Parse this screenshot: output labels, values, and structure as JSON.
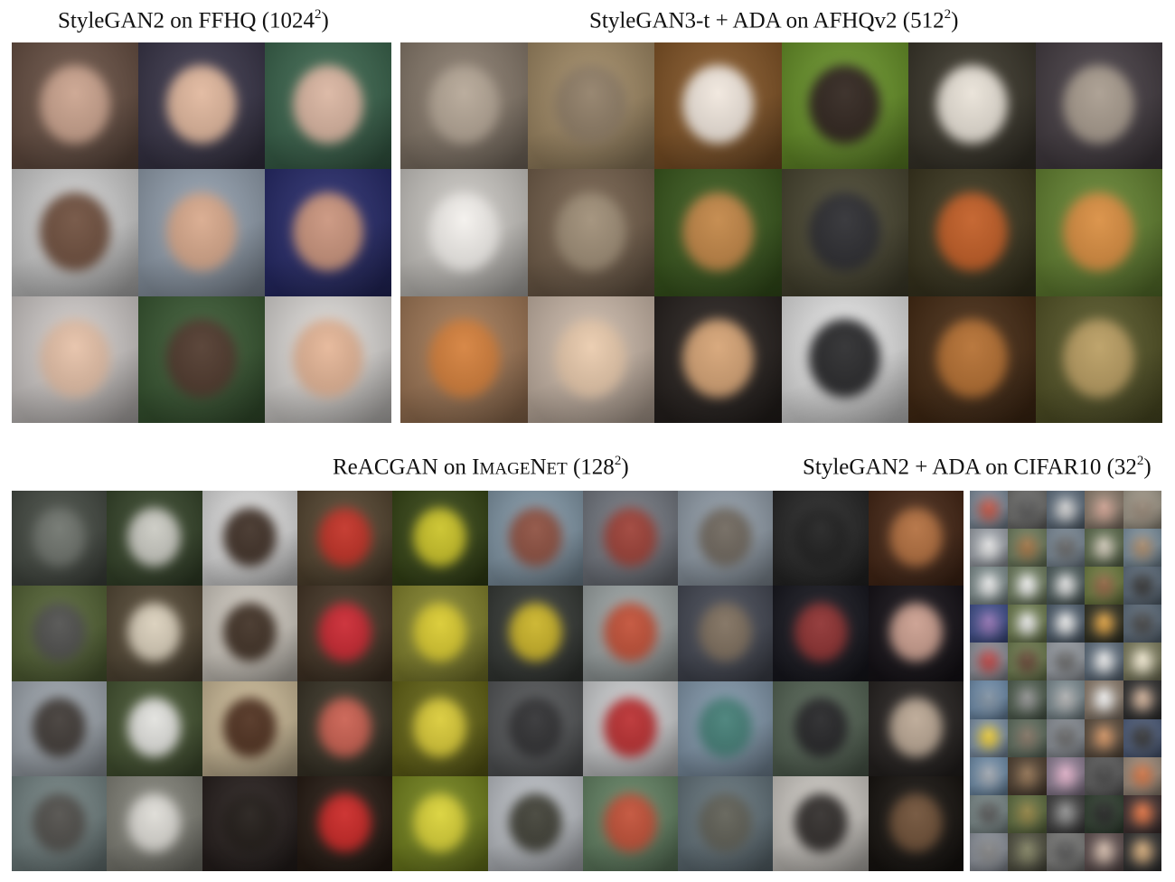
{
  "captions": {
    "ffhq": {
      "text": "StyleGAN2 on FFHQ (1024",
      "exp": "2",
      "tail": ")"
    },
    "afhq": {
      "text": "StyleGAN3-t + ADA on AFHQv2 (512",
      "exp": "2",
      "tail": ")"
    },
    "imagenet": {
      "prefix": "ReACGAN on ",
      "sc_big": "I",
      "sc_small": "mage",
      "sc_big2": "N",
      "sc_small2": "et",
      "text": " (128",
      "exp": "2",
      "tail": ")"
    },
    "cifar": {
      "text": "StyleGAN2 + ADA on CIFAR10 (32",
      "exp": "2",
      "tail": ")"
    }
  },
  "grids": {
    "ffhq": {
      "cols": 3,
      "rows": 3,
      "tiles": [
        {
          "bg": "#6e5548",
          "fg": "#c9a08a"
        },
        {
          "bg": "#3e3a4e",
          "fg": "#e0b59a"
        },
        {
          "bg": "#3f6b52",
          "fg": "#d9b39e"
        },
        {
          "bg": "#d7d7d7",
          "fg": "#6b4a38"
        },
        {
          "bg": "#9aa7b6",
          "fg": "#d7a688"
        },
        {
          "bg": "#2a2e70",
          "fg": "#c89078"
        },
        {
          "bg": "#d9d4d2",
          "fg": "#e5bfa5"
        },
        {
          "bg": "#3d5d36",
          "fg": "#4a3326"
        },
        {
          "bg": "#e6e3e0",
          "fg": "#e4b393"
        }
      ]
    },
    "afhq": {
      "cols": 6,
      "rows": 3,
      "tiles": [
        {
          "bg": "#8f8172",
          "fg": "#b3a493"
        },
        {
          "bg": "#a8906a",
          "fg": "#8d7a62"
        },
        {
          "bg": "#8a5a2a",
          "fg": "#f0e6dc"
        },
        {
          "bg": "#6e9a2c",
          "fg": "#2a1e17"
        },
        {
          "bg": "#3e3a2e",
          "fg": "#e8e1d6"
        },
        {
          "bg": "#4a4248",
          "fg": "#a5988a"
        },
        {
          "bg": "#d4d1cc",
          "fg": "#f3f0ec"
        },
        {
          "bg": "#7a6550",
          "fg": "#9c8a72"
        },
        {
          "bg": "#3e5e20",
          "fg": "#c08240"
        },
        {
          "bg": "#4d4a34",
          "fg": "#26262a"
        },
        {
          "bg": "#3f3a22",
          "fg": "#c0581e"
        },
        {
          "bg": "#6a8a35",
          "fg": "#d88a3a"
        },
        {
          "bg": "#a97f5c",
          "fg": "#d37b34"
        },
        {
          "bg": "#d3c0b0",
          "fg": "#e9c9aa"
        },
        {
          "bg": "#2a2421",
          "fg": "#d4a070"
        },
        {
          "bg": "#eeeeee",
          "fg": "#232325"
        },
        {
          "bg": "#4a2e16",
          "fg": "#b26a2a"
        },
        {
          "bg": "#5a5a2a",
          "fg": "#b79a5c"
        }
      ]
    },
    "imagenet": {
      "cols": 10,
      "rows": 4,
      "tiles": [
        {
          "bg": "#4a5048",
          "fg": "#6a6f68"
        },
        {
          "bg": "#3a4a2e",
          "fg": "#c8c8c0"
        },
        {
          "bg": "#e8e8e8",
          "fg": "#3a2a20"
        },
        {
          "bg": "#5a4a34",
          "fg": "#c02a1e"
        },
        {
          "bg": "#3a4a18",
          "fg": "#c8c020"
        },
        {
          "bg": "#8aa0b0",
          "fg": "#8a4a3a"
        },
        {
          "bg": "#7a7f88",
          "fg": "#9a3a30"
        },
        {
          "bg": "#9aa6b2",
          "fg": "#6a6258"
        },
        {
          "bg": "#2a2a2a",
          "fg": "#181818"
        },
        {
          "bg": "#4a2a18",
          "fg": "#b06a38"
        },
        {
          "bg": "#5a6a3a",
          "fg": "#4a4a48"
        },
        {
          "bg": "#5a4e3a",
          "fg": "#d8cdb8"
        },
        {
          "bg": "#dcd6cc",
          "fg": "#3a2a1e"
        },
        {
          "bg": "#4a3a2a",
          "fg": "#c8202a"
        },
        {
          "bg": "#8a8a30",
          "fg": "#d8c828"
        },
        {
          "bg": "#3a3e3a",
          "fg": "#c8b020"
        },
        {
          "bg": "#a6aeae",
          "fg": "#c04a30"
        },
        {
          "bg": "#4a4e5a",
          "fg": "#7a6a58"
        },
        {
          "bg": "#1a1a22",
          "fg": "#8a2a2a"
        },
        {
          "bg": "#18141a",
          "fg": "#c89a8a"
        },
        {
          "bg": "#a8b0b8",
          "fg": "#3a3430"
        },
        {
          "bg": "#4a5a36",
          "fg": "#e0e0dc"
        },
        {
          "bg": "#d6c4a0",
          "fg": "#4a2a18"
        },
        {
          "bg": "#3e382a",
          "fg": "#c85a4a"
        },
        {
          "bg": "#6a6a18",
          "fg": "#d8c830"
        },
        {
          "bg": "#5a5c5e",
          "fg": "#2a2a2c"
        },
        {
          "bg": "#d8dadc",
          "fg": "#b8282a"
        },
        {
          "bg": "#8aa0b4",
          "fg": "#3e7a72"
        },
        {
          "bg": "#5a6a5a",
          "fg": "#1e1e20"
        },
        {
          "bg": "#2a2624",
          "fg": "#b8a490"
        },
        {
          "bg": "#7a8a8a",
          "fg": "#4a4844"
        },
        {
          "bg": "#8a8a80",
          "fg": "#dcdad4"
        },
        {
          "bg": "#2a2220",
          "fg": "#1a1410"
        },
        {
          "bg": "#2a1e16",
          "fg": "#c8201e"
        },
        {
          "bg": "#7a8a20",
          "fg": "#d8d030"
        },
        {
          "bg": "#c8ccd2",
          "fg": "#3a3a30"
        },
        {
          "bg": "#6a8a6a",
          "fg": "#c04a30"
        },
        {
          "bg": "#6a7a82",
          "fg": "#5a5a50"
        },
        {
          "bg": "#d8d4ce",
          "fg": "#2a2624"
        },
        {
          "bg": "#1a1612",
          "fg": "#6a4a30"
        }
      ]
    },
    "cifar": {
      "cols": 5,
      "rows": 10,
      "tiles": [
        {
          "bg": "#8a9aaa",
          "fg": "#b84a3a"
        },
        {
          "bg": "#7a7a78",
          "fg": "#4a4a4a"
        },
        {
          "bg": "#6a7a8a",
          "fg": "#c8c8c8"
        },
        {
          "bg": "#9a8a7a",
          "fg": "#c89a8a"
        },
        {
          "bg": "#b0a898",
          "fg": "#8a7a6a"
        },
        {
          "bg": "#aab0b8",
          "fg": "#dcdcdc"
        },
        {
          "bg": "#7a8a6a",
          "fg": "#9a6a3a"
        },
        {
          "bg": "#8a9aa8",
          "fg": "#5a5a5a"
        },
        {
          "bg": "#6a7a5a",
          "fg": "#c8c0b0"
        },
        {
          "bg": "#8aa0b0",
          "fg": "#a08060"
        },
        {
          "bg": "#8a9a9a",
          "fg": "#e0e0e0"
        },
        {
          "bg": "#7a8a6a",
          "fg": "#e8e8e8"
        },
        {
          "bg": "#5a6a6a",
          "fg": "#d8d8d8"
        },
        {
          "bg": "#7a8a4a",
          "fg": "#8a5a3a"
        },
        {
          "bg": "#6a7a8a",
          "fg": "#2a2a2a"
        },
        {
          "bg": "#4a5a9a",
          "fg": "#8a6aaa"
        },
        {
          "bg": "#7a8a5a",
          "fg": "#e0e0e0"
        },
        {
          "bg": "#5a6a7a",
          "fg": "#e0e0e0"
        },
        {
          "bg": "#3a3a2a",
          "fg": "#d89a3a"
        },
        {
          "bg": "#6a7a8a",
          "fg": "#3a3a3a"
        },
        {
          "bg": "#9aa0aa",
          "fg": "#b03a3a"
        },
        {
          "bg": "#7a8a5a",
          "fg": "#5a3a2a"
        },
        {
          "bg": "#aab0b8",
          "fg": "#5a5a5a"
        },
        {
          "bg": "#6a7a8a",
          "fg": "#e0e0e0"
        },
        {
          "bg": "#8a8a6a",
          "fg": "#e8e0c8"
        },
        {
          "bg": "#7a9aba",
          "fg": "#7a8a9a"
        },
        {
          "bg": "#5a6a5a",
          "fg": "#8a8a8a"
        },
        {
          "bg": "#8a9aa0",
          "fg": "#aaaaaa"
        },
        {
          "bg": "#9a8a7a",
          "fg": "#e8e8e8"
        },
        {
          "bg": "#3a3a3a",
          "fg": "#c8a890"
        },
        {
          "bg": "#8aa0b8",
          "fg": "#e0c030"
        },
        {
          "bg": "#6a7a6a",
          "fg": "#7a6a5a"
        },
        {
          "bg": "#9aa0a8",
          "fg": "#5a5a5a"
        },
        {
          "bg": "#6a5a4a",
          "fg": "#c88a5a"
        },
        {
          "bg": "#5a6a8a",
          "fg": "#2a2a2a"
        },
        {
          "bg": "#7a9ab8",
          "fg": "#9aa0a8"
        },
        {
          "bg": "#5a4a3a",
          "fg": "#8a6a4a"
        },
        {
          "bg": "#9a8aa0",
          "fg": "#d8a8c0"
        },
        {
          "bg": "#6a6a6a",
          "fg": "#3a3a3a"
        },
        {
          "bg": "#aa9a8a",
          "fg": "#c86a3a"
        },
        {
          "bg": "#8a9a9a",
          "fg": "#4a4a4a"
        },
        {
          "bg": "#6a7a4a",
          "fg": "#8a7a3a"
        },
        {
          "bg": "#4a4a4a",
          "fg": "#8a8a8a"
        },
        {
          "bg": "#3a4a3a",
          "fg": "#1a1a1a"
        },
        {
          "bg": "#4a3a3a",
          "fg": "#d86a3a"
        },
        {
          "bg": "#9aa0aa",
          "fg": "#7a7a7a"
        },
        {
          "bg": "#5a5a4a",
          "fg": "#7a7a5a"
        },
        {
          "bg": "#8a8a88",
          "fg": "#4a4a4a"
        },
        {
          "bg": "#6a5a5a",
          "fg": "#c8b0a0"
        },
        {
          "bg": "#3a3a3a",
          "fg": "#c8a070"
        }
      ]
    }
  }
}
